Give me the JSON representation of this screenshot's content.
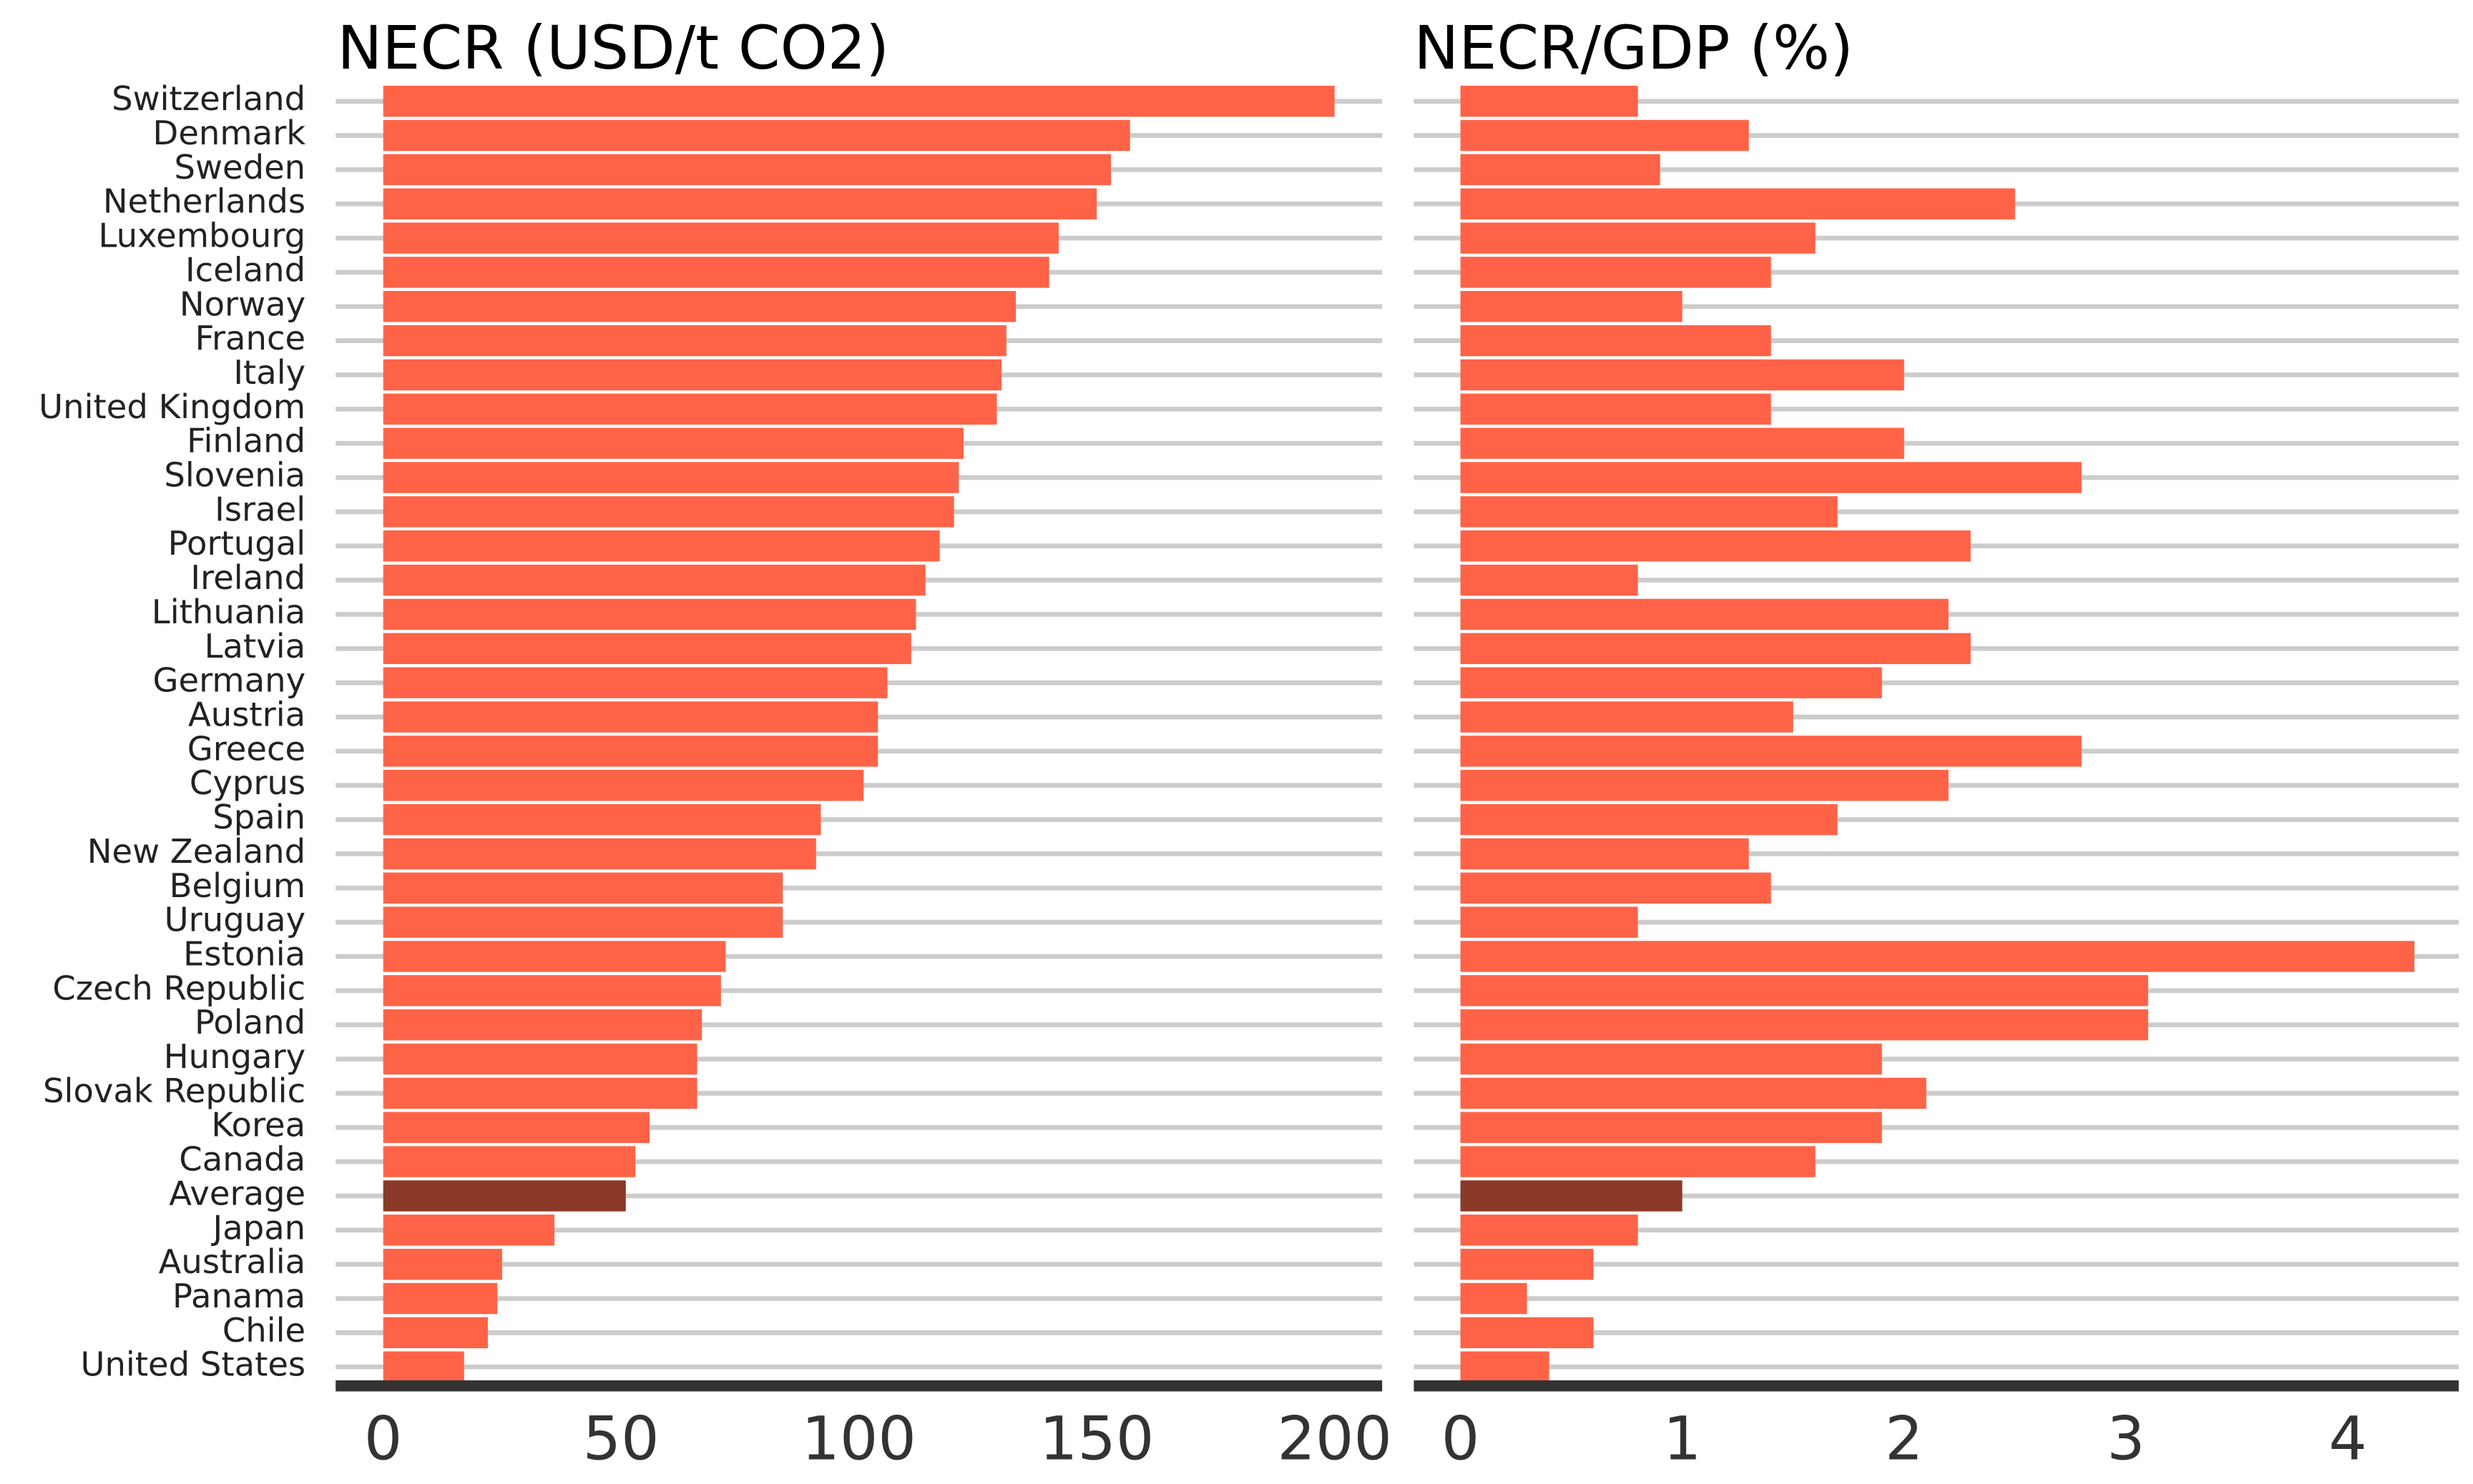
{
  "chart_data": [
    {
      "type": "bar",
      "orientation": "horizontal",
      "title": "NECR (USD/t CO2)",
      "categories": [
        "Switzerland",
        "Denmark",
        "Sweden",
        "Netherlands",
        "Luxembourg",
        "Iceland",
        "Norway",
        "France",
        "Italy",
        "United Kingdom",
        "Finland",
        "Slovenia",
        "Israel",
        "Portugal",
        "Ireland",
        "Lithuania",
        "Latvia",
        "Germany",
        "Austria",
        "Greece",
        "Cyprus",
        "Spain",
        "New Zealand",
        "Belgium",
        "Uruguay",
        "Estonia",
        "Czech Republic",
        "Poland",
        "Hungary",
        "Slovak Republic",
        "Korea",
        "Canada",
        "Average",
        "Japan",
        "Australia",
        "Panama",
        "Chile",
        "United States"
      ],
      "values": [
        200,
        157,
        153,
        150,
        142,
        140,
        133,
        131,
        130,
        129,
        122,
        121,
        120,
        117,
        114,
        112,
        111,
        106,
        104,
        104,
        101,
        92,
        91,
        84,
        84,
        72,
        71,
        67,
        66,
        66,
        56,
        53,
        51,
        36,
        25,
        24,
        22,
        17
      ],
      "colors": [
        "#ff6347",
        "#ff6347",
        "#ff6347",
        "#ff6347",
        "#ff6347",
        "#ff6347",
        "#ff6347",
        "#ff6347",
        "#ff6347",
        "#ff6347",
        "#ff6347",
        "#ff6347",
        "#ff6347",
        "#ff6347",
        "#ff6347",
        "#ff6347",
        "#ff6347",
        "#ff6347",
        "#ff6347",
        "#ff6347",
        "#ff6347",
        "#ff6347",
        "#ff6347",
        "#ff6347",
        "#ff6347",
        "#ff6347",
        "#ff6347",
        "#ff6347",
        "#ff6347",
        "#ff6347",
        "#ff6347",
        "#ff6347",
        "#8b3a2a",
        "#ff6347",
        "#ff6347",
        "#ff6347",
        "#ff6347",
        "#ff6347"
      ],
      "xlim": [
        -10,
        210
      ],
      "xticks": [
        0,
        50,
        100,
        150,
        200
      ],
      "grid": true
    },
    {
      "type": "bar",
      "orientation": "horizontal",
      "title": "NECR/GDP (%)",
      "values": [
        0.8,
        1.3,
        0.9,
        2.5,
        1.6,
        1.4,
        1.0,
        1.4,
        2.0,
        1.4,
        2.0,
        2.8,
        1.7,
        2.3,
        0.8,
        2.2,
        2.3,
        1.9,
        1.5,
        2.8,
        2.2,
        1.7,
        1.3,
        1.4,
        0.8,
        4.3,
        3.1,
        3.1,
        1.9,
        2.1,
        1.9,
        1.6,
        1.0,
        0.8,
        0.6,
        0.3,
        0.6,
        0.4
      ],
      "colors": [
        "#ff6347",
        "#ff6347",
        "#ff6347",
        "#ff6347",
        "#ff6347",
        "#ff6347",
        "#ff6347",
        "#ff6347",
        "#ff6347",
        "#ff6347",
        "#ff6347",
        "#ff6347",
        "#ff6347",
        "#ff6347",
        "#ff6347",
        "#ff6347",
        "#ff6347",
        "#ff6347",
        "#ff6347",
        "#ff6347",
        "#ff6347",
        "#ff6347",
        "#ff6347",
        "#ff6347",
        "#ff6347",
        "#ff6347",
        "#ff6347",
        "#ff6347",
        "#ff6347",
        "#ff6347",
        "#ff6347",
        "#ff6347",
        "#8b3a2a",
        "#ff6347",
        "#ff6347",
        "#ff6347",
        "#ff6347",
        "#ff6347"
      ],
      "xlim": [
        -0.21,
        4.5
      ],
      "xticks": [
        0,
        1,
        2,
        3,
        4
      ],
      "grid": true
    }
  ]
}
